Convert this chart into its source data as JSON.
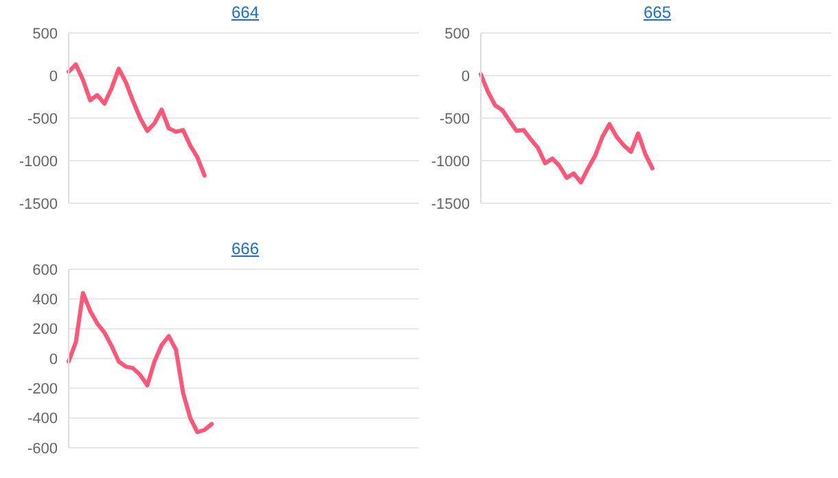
{
  "chart_data": [
    {
      "type": "line",
      "title": "664",
      "categories": [
        null,
        null,
        null,
        null,
        null,
        null,
        null,
        null,
        null,
        null,
        null,
        null,
        null,
        null,
        null,
        null,
        null,
        null,
        null,
        null,
        null,
        null,
        null,
        null,
        null,
        null,
        null,
        null,
        null,
        null,
        null,
        null,
        null,
        null,
        null,
        null,
        null,
        null,
        null,
        null,
        null,
        null,
        null,
        null,
        null,
        null,
        null,
        null,
        null,
        null
      ],
      "series": [
        {
          "color": "#ff5577",
          "values": [
            45,
            130,
            -50,
            -290,
            -230,
            -330,
            -150,
            80,
            -80,
            -300,
            -500,
            -650,
            -560,
            -400,
            -620,
            -660,
            -640,
            -820,
            -960,
            -1175,
            null,
            null,
            null,
            null,
            null,
            null,
            null,
            null,
            null,
            null,
            null,
            null,
            null,
            null,
            null,
            null,
            null,
            null,
            null,
            null,
            null,
            null,
            null,
            null,
            null,
            null,
            null,
            null,
            null,
            null
          ]
        }
      ],
      "ylim": [
        -1500,
        500
      ],
      "yticks": [
        -1500,
        -1000,
        -500,
        0,
        500
      ],
      "grid": "y",
      "tick_labels": "y",
      "marker": "none",
      "legend": false
    },
    {
      "type": "line",
      "title": "665",
      "categories": [
        null,
        null,
        null,
        null,
        null,
        null,
        null,
        null,
        null,
        null,
        null,
        null,
        null,
        null,
        null,
        null,
        null,
        null,
        null,
        null,
        null,
        null,
        null,
        null,
        null,
        null,
        null,
        null,
        null,
        null,
        null,
        null,
        null,
        null,
        null,
        null,
        null,
        null,
        null,
        null,
        null,
        null,
        null,
        null,
        null,
        null,
        null,
        null,
        null,
        null
      ],
      "series": [
        {
          "color": "#ff5577",
          "values": [
            15,
            -190,
            -350,
            -405,
            -530,
            -650,
            -640,
            -750,
            -850,
            -1030,
            -975,
            -1060,
            -1200,
            -1150,
            -1255,
            -1090,
            -940,
            -720,
            -570,
            -720,
            -820,
            -895,
            -680,
            -920,
            -1090,
            null,
            null,
            null,
            null,
            null,
            null,
            null,
            null,
            null,
            null,
            null,
            null,
            null,
            null,
            null,
            null,
            null,
            null,
            null,
            null,
            null,
            null,
            null,
            null,
            null
          ]
        }
      ],
      "ylim": [
        -1500,
        500
      ],
      "yticks": [
        -1500,
        -1000,
        -500,
        0,
        500
      ],
      "grid": "y",
      "tick_labels": "y",
      "marker": "none",
      "legend": false
    },
    {
      "type": "line",
      "title": "666",
      "categories": [
        null,
        null,
        null,
        null,
        null,
        null,
        null,
        null,
        null,
        null,
        null,
        null,
        null,
        null,
        null,
        null,
        null,
        null,
        null,
        null,
        null,
        null,
        null,
        null,
        null,
        null,
        null,
        null,
        null,
        null,
        null,
        null,
        null,
        null,
        null,
        null,
        null,
        null,
        null,
        null,
        null,
        null,
        null,
        null,
        null,
        null,
        null,
        null,
        null,
        null
      ],
      "series": [
        {
          "color": "#ff5577",
          "values": [
            -20,
            110,
            440,
            320,
            235,
            175,
            85,
            -20,
            -55,
            -65,
            -110,
            -180,
            -20,
            90,
            150,
            60,
            -230,
            -400,
            -495,
            -480,
            -440,
            null,
            null,
            null,
            null,
            null,
            null,
            null,
            null,
            null,
            null,
            null,
            null,
            null,
            null,
            null,
            null,
            null,
            null,
            null,
            null,
            null,
            null,
            null,
            null,
            null,
            null,
            null,
            null,
            null
          ]
        }
      ],
      "ylim": [
        -600,
        600
      ],
      "yticks": [
        -600,
        -400,
        -200,
        0,
        200,
        400,
        600
      ],
      "grid": "y",
      "tick_labels": "y",
      "marker": "none",
      "legend": false
    }
  ]
}
